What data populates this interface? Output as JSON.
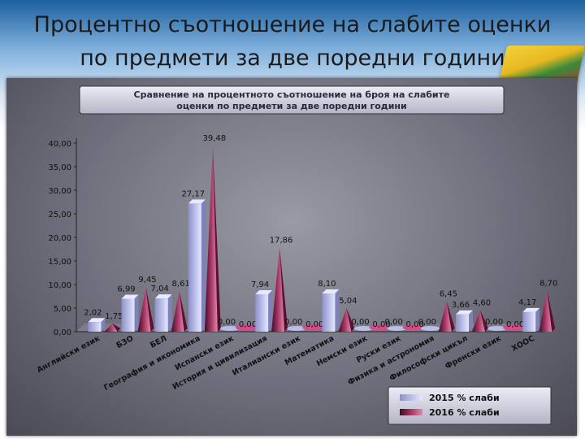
{
  "slide": {
    "title_line1": "Процентно съотношение на слабите оценки",
    "title_line2": "по предмети за две поредни години"
  },
  "colors": {
    "series_2015": "#b9bde8",
    "series_2016": "#a0305e",
    "panel": "#6e6e7c",
    "banner": "#c8c8d8"
  },
  "chart_data": {
    "type": "bar",
    "title_line1": "Сравнение на процентното съотношение на броя на слабите",
    "title_line2": "оценки по предмети за две поредни години",
    "categories": [
      "Английски език",
      "БЗО",
      "БЕЛ",
      "География и икономика",
      "Испански език",
      "История и цивилизация",
      "Италиански език",
      "Математика",
      "Немски език",
      "Руски език",
      "Физика и астрономия",
      "Философски цикъл",
      "Френски език",
      "ХООС"
    ],
    "series": [
      {
        "name": "2015 % слаби",
        "values": [
          2.02,
          6.99,
          7.04,
          27.17,
          0.0,
          7.94,
          0.0,
          8.1,
          0.0,
          0.0,
          0.0,
          3.66,
          0.0,
          4.17
        ],
        "labels": [
          "2,02",
          "6,99",
          "7,04",
          "27,17",
          "0,00",
          "7,94",
          "0,00",
          "8,10",
          "0,00",
          "0,00",
          "0,00",
          "3,66",
          "0,00",
          "4,17"
        ]
      },
      {
        "name": "2016 % слаби",
        "values": [
          1.75,
          9.45,
          8.61,
          39.48,
          0.0,
          17.86,
          0.0,
          5.04,
          0.0,
          0.0,
          6.45,
          4.6,
          0.0,
          8.7
        ],
        "labels": [
          "1,75",
          "9,45",
          "8,61",
          "39,48",
          "0,00",
          "17,86",
          "0,00",
          "5,04",
          "0,00",
          "0,00",
          "6,45",
          "4,60",
          "0,00",
          "8,70"
        ]
      }
    ],
    "y_ticks": [
      "0,00",
      "5,00",
      "10,00",
      "15,00",
      "20,00",
      "25,00",
      "30,00",
      "35,00",
      "40,00"
    ],
    "ylim": [
      0,
      40
    ],
    "legend_position": "bottom-right"
  }
}
